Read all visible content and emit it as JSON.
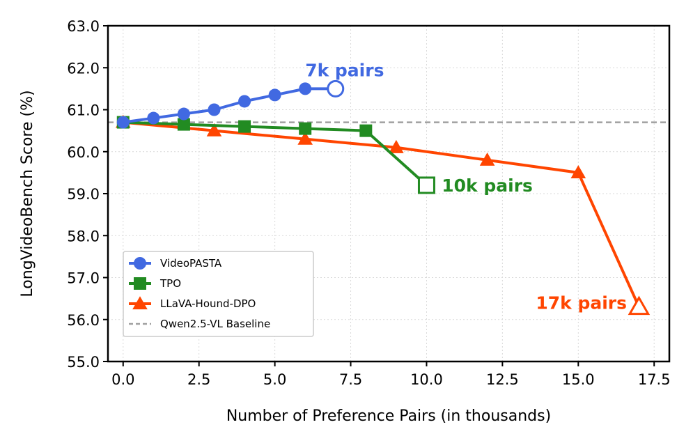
{
  "chart_data": {
    "type": "line",
    "xlabel": "Number of Preference Pairs (in thousands)",
    "ylabel": "LongVideoBench Score (%)",
    "xlim": [
      -0.5,
      18.0
    ],
    "ylim": [
      55.0,
      63.0
    ],
    "xticks": [
      0.0,
      2.5,
      5.0,
      7.5,
      10.0,
      12.5,
      15.0,
      17.5
    ],
    "xtick_labels": [
      "0.0",
      "2.5",
      "5.0",
      "7.5",
      "10.0",
      "12.5",
      "15.0",
      "17.5"
    ],
    "yticks": [
      55,
      56,
      57,
      58,
      59,
      60,
      61,
      62,
      63
    ],
    "ytick_labels": [
      "55.0",
      "56.0",
      "57.0",
      "58.0",
      "59.0",
      "60.0",
      "61.0",
      "62.0",
      "63.0"
    ],
    "grid": true,
    "legend_position": "lower-left",
    "series": [
      {
        "name": "VideoPASTA",
        "color": "#4169e1",
        "marker": "circle",
        "x": [
          0,
          1,
          2,
          3,
          4,
          5,
          6,
          7
        ],
        "y": [
          60.7,
          60.8,
          60.9,
          61.0,
          61.2,
          61.35,
          61.5,
          61.5
        ]
      },
      {
        "name": "TPO",
        "color": "#228b22",
        "marker": "square",
        "x": [
          0,
          2,
          4,
          6,
          8,
          10
        ],
        "y": [
          60.7,
          60.65,
          60.6,
          60.55,
          60.5,
          59.2
        ]
      },
      {
        "name": "LLaVA-Hound-DPO",
        "color": "#ff4500",
        "marker": "triangle",
        "x": [
          0,
          3,
          6,
          9,
          12,
          15,
          17
        ],
        "y": [
          60.7,
          60.5,
          60.3,
          60.1,
          59.8,
          59.5,
          56.3
        ]
      }
    ],
    "baseline": {
      "name": "Qwen2.5-VL Baseline",
      "y": 60.7,
      "color": "#a0a0a0"
    },
    "annotations": [
      {
        "text": "7k pairs",
        "x": 6.0,
        "y": 61.95,
        "color": "#4169e1",
        "anchor": "start"
      },
      {
        "text": "10k pairs",
        "x": 10.5,
        "y": 59.2,
        "color": "#228b22",
        "anchor": "start"
      },
      {
        "text": "17k pairs",
        "x": 16.6,
        "y": 56.4,
        "color": "#ff4500",
        "anchor": "end"
      }
    ]
  }
}
